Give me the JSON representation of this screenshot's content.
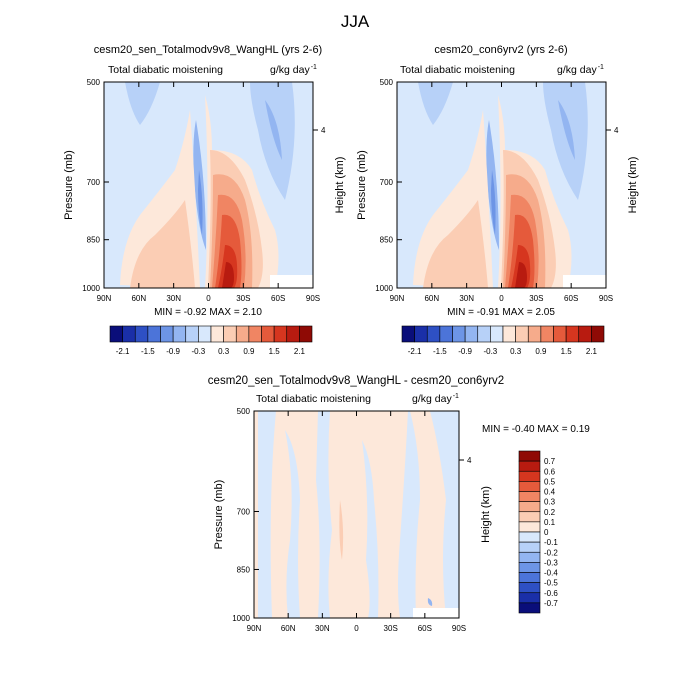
{
  "page": {
    "title": "JJA"
  },
  "colors": {
    "pos_ramp": [
      "#fde8da",
      "#fbcdb4",
      "#f6ab8b",
      "#f08563",
      "#e55a3b",
      "#d6361f",
      "#b81b10",
      "#8f0a05"
    ],
    "neg_ramp": [
      "#d8e8fc",
      "#b7d1f8",
      "#93b5f1",
      "#6d95e6",
      "#4c74d9",
      "#2e50c4",
      "#1a2fa8",
      "#0a0e7a"
    ]
  },
  "chart_data": [
    {
      "type": "heatmap",
      "title": "cesm20_sen_Totalmodv9v8_WangHL (yrs 2-6)",
      "subtitle_left": "Total diabatic moistening",
      "units": "g/kg day",
      "units_sup": "-1",
      "ylabel": "Pressure (mb)",
      "ylabel_right": "Height (km)",
      "x_ticks": [
        "90N",
        "60N",
        "30N",
        "0",
        "30S",
        "60S",
        "90S"
      ],
      "y_ticks": [
        "500",
        "700",
        "850",
        "1000"
      ],
      "y_right_ticks": [
        "4"
      ],
      "minmax": "MIN =  -0.92  MAX =  2.10",
      "colorbar_labels": [
        "-2.1",
        "-1.5",
        "-0.9",
        "-0.3",
        "0.3",
        "0.9",
        "1.5",
        "2.1"
      ]
    },
    {
      "type": "heatmap",
      "title": "cesm20_con6yrv2 (yrs 2-6)",
      "subtitle_left": "Total diabatic moistening",
      "units": "g/kg day",
      "units_sup": "-1",
      "ylabel": "Pressure (mb)",
      "ylabel_right": "Height (km)",
      "x_ticks": [
        "90N",
        "60N",
        "30N",
        "0",
        "30S",
        "60S",
        "90S"
      ],
      "y_ticks": [
        "500",
        "700",
        "850",
        "1000"
      ],
      "y_right_ticks": [
        "4"
      ],
      "minmax": "MIN =  -0.91  MAX =  2.05",
      "colorbar_labels": [
        "-2.1",
        "-1.5",
        "-0.9",
        "-0.3",
        "0.3",
        "0.9",
        "1.5",
        "2.1"
      ]
    },
    {
      "type": "heatmap",
      "title": "cesm20_sen_Totalmodv9v8_WangHL - cesm20_con6yrv2",
      "subtitle_left": "Total diabatic moistening",
      "units": "g/kg day",
      "units_sup": "-1",
      "ylabel": "Pressure (mb)",
      "ylabel_right": "Height (km)",
      "x_ticks": [
        "90N",
        "60N",
        "30N",
        "0",
        "30S",
        "60S",
        "90S"
      ],
      "y_ticks": [
        "500",
        "700",
        "850",
        "1000"
      ],
      "y_right_ticks": [
        "4"
      ],
      "minmax": "MIN =  -0.40  MAX =   0.19",
      "colorbar_labels": [
        "0.7",
        "0.6",
        "0.5",
        "0.4",
        "0.3",
        "0.2",
        "0.1",
        "0",
        "-0.1",
        "-0.2",
        "-0.3",
        "-0.4",
        "-0.5",
        "-0.6",
        "-0.7"
      ]
    }
  ]
}
